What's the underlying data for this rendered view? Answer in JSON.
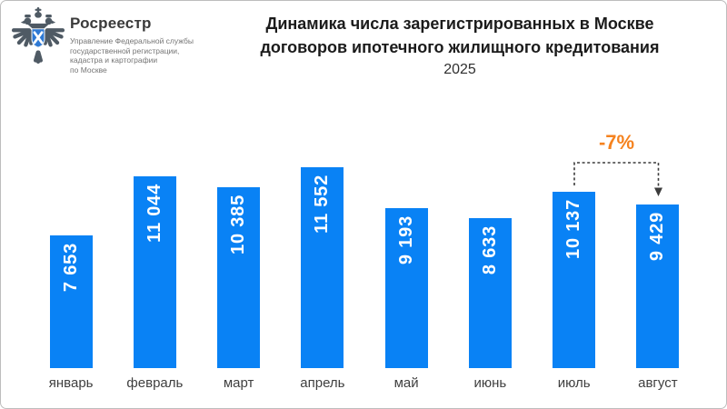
{
  "logo": {
    "brand": "Росреестр",
    "department_lines": [
      "Управление Федеральной службы",
      "государственной регистрации,",
      "кадастра и картографии",
      "по Москве"
    ]
  },
  "title": {
    "line1": "Динамика числа зарегистрированных в Москве",
    "line2": "договоров ипотечного жилищного кредитования",
    "year": "2025"
  },
  "chart_data": {
    "type": "bar",
    "title": "Динамика числа зарегистрированных в Москве договоров ипотечного жилищного кредитования",
    "subtitle": "2025",
    "categories": [
      "январь",
      "февраль",
      "март",
      "апрель",
      "май",
      "июнь",
      "июль",
      "август"
    ],
    "values": [
      7653,
      11044,
      10385,
      11552,
      9193,
      8633,
      10137,
      9429
    ],
    "value_labels": [
      "7 653",
      "11 044",
      "10 385",
      "11 552",
      "9 193",
      "8 633",
      "10 137",
      "9 429"
    ],
    "ylim": [
      0,
      11552
    ],
    "grid": false,
    "legend": "none",
    "bar_color": "#0982F5",
    "value_label_color": "#FFFFFF",
    "axis_label_color": "#3F3F3F",
    "annotation": {
      "label": "-7%",
      "from_category": "июль",
      "to_category": "август",
      "color": "#F5821E",
      "line_color": "#3C3C3C",
      "style": "dashed-bracket-arrow"
    }
  }
}
